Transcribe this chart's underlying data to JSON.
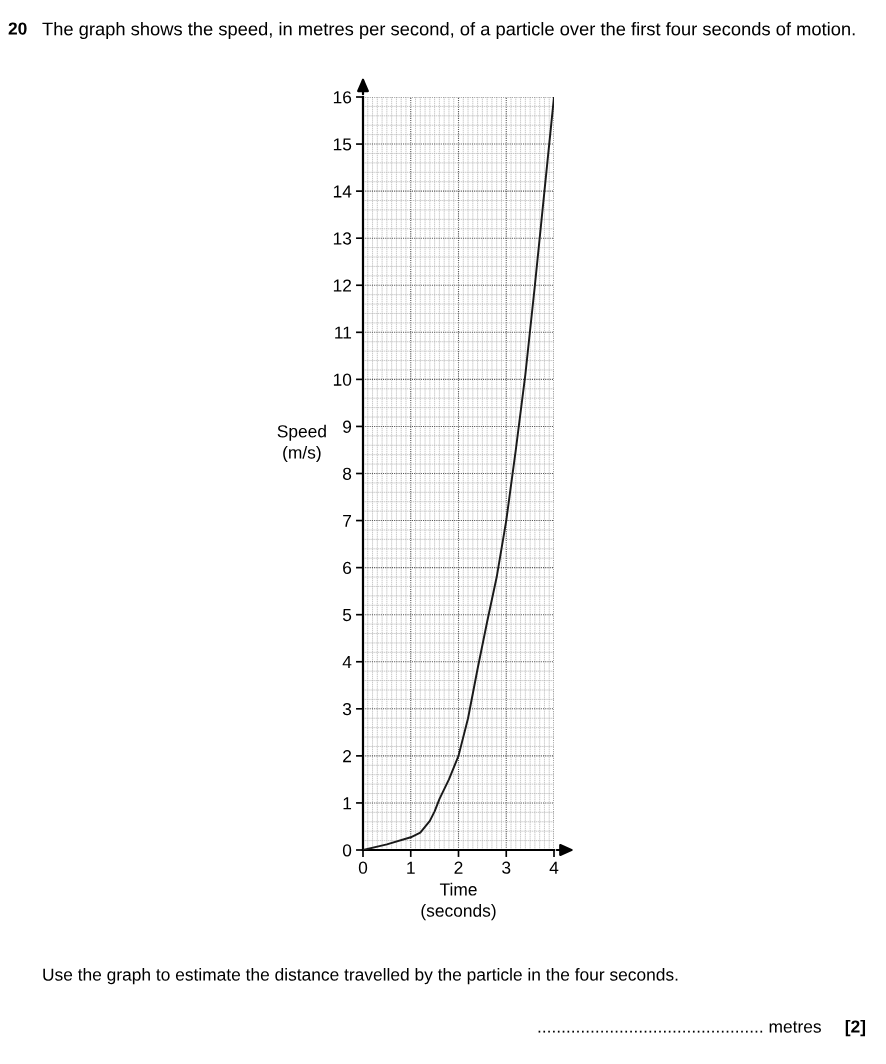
{
  "chart_data": {
    "type": "line",
    "title": "The graph shows the speed, in metres per second, of a particle over the first four seconds of motion.",
    "xlabel": "Time\n(seconds)",
    "ylabel": "Speed\n(m/s)",
    "annotations": [
      "20",
      "Use the graph to estimate the distance travelled by the particle in the four seconds.",
      "............................................... metres",
      "[2]"
    ],
    "x": [
      0,
      0.5,
      1,
      1.2,
      1.4,
      1.5,
      1.6,
      1.8,
      2,
      2.2,
      2.4,
      2.6,
      2.8,
      3,
      3.2,
      3.4,
      3.6,
      3.8,
      4
    ],
    "series": [
      {
        "color": "#1a1a1a",
        "values": [
          0,
          0.12,
          0.27,
          0.37,
          0.62,
          0.82,
          1.08,
          1.5,
          2.0,
          2.8,
          3.85,
          4.85,
          5.8,
          7.0,
          8.5,
          10.1,
          12.0,
          14.0,
          16
        ]
      }
    ],
    "xlim": [
      0,
      4
    ],
    "ylim": [
      0,
      16
    ],
    "xticks": [
      0,
      1,
      2,
      3,
      4
    ],
    "yticks": [
      0,
      1,
      2,
      3,
      4,
      5,
      6,
      7,
      8,
      9,
      10,
      11,
      12,
      13,
      14,
      15,
      16
    ],
    "grid": true,
    "marker": "none",
    "line_style": "solid",
    "legend": false
  }
}
